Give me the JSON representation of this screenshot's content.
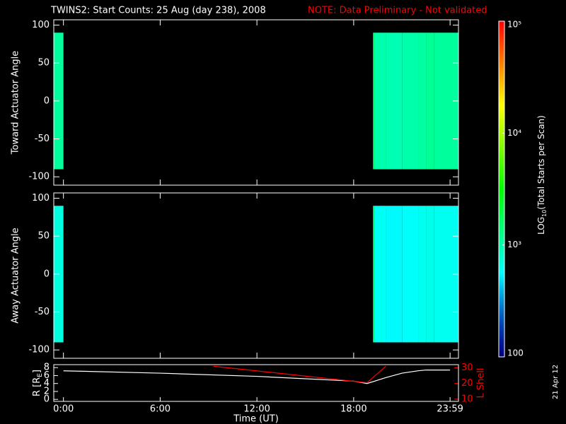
{
  "title": "TWINS2: Start Counts: 25 Aug (day 238), 2008",
  "note": "NOTE: Data Preliminary - Not validated",
  "side_date": "21 Apr 12",
  "chart_data": [
    {
      "type": "heatmap",
      "ylabel": "Toward Actuator Angle",
      "x_edges": [
        -0.6,
        0,
        19.2,
        19.3,
        20,
        21,
        22,
        22.5,
        23,
        24.5
      ],
      "y_edges": [
        -90,
        90
      ],
      "values": [
        1100,
        null,
        1500,
        1000,
        950,
        1000,
        1050,
        1150,
        1100
      ],
      "xlim": [
        -0.6,
        24.5
      ],
      "ylim": [
        -111,
        107
      ],
      "yticks": [
        100,
        50,
        0,
        -50,
        -100
      ],
      "zlim": [
        100,
        100000
      ],
      "zscale": "log",
      "zticks": [
        100,
        {
          "value": 1000,
          "label": "10³"
        },
        {
          "value": 10000,
          "label": "10⁴"
        },
        {
          "value": 100000,
          "label": "10⁵"
        }
      ],
      "zlabel": [
        "LOG",
        "10",
        "(Total Starts per Scan)"
      ]
    },
    {
      "type": "heatmap",
      "ylabel": "Away Actuator Angle",
      "x_edges": [
        -0.6,
        0,
        19.2,
        19.3,
        20,
        21,
        22,
        22.5,
        23,
        24.5
      ],
      "y_edges": [
        -90,
        90
      ],
      "values": [
        700,
        null,
        1200,
        600,
        550,
        580,
        620,
        650,
        620
      ],
      "xlim": [
        -0.6,
        24.5
      ],
      "ylim": [
        -111,
        107
      ],
      "yticks": [
        100,
        50,
        0,
        -50,
        -100
      ]
    },
    {
      "type": "line",
      "ylabel": [
        "R [R",
        "E",
        "]"
      ],
      "y2label": "L Shell",
      "xlabel": "Time (UT)",
      "xlim": [
        -0.6,
        24.5
      ],
      "ylim": [
        -0.5,
        8.75
      ],
      "y2lim": [
        8.6,
        32
      ],
      "xticks": [
        {
          "value": 0,
          "label": "0:00"
        },
        {
          "value": 6,
          "label": "6:00"
        },
        {
          "value": 12,
          "label": "12:00"
        },
        {
          "value": 18,
          "label": "18:00"
        },
        {
          "value": 23.98,
          "label": "23:59"
        }
      ],
      "yticks": [
        0,
        2,
        4,
        6,
        8
      ],
      "y2ticks": [
        10,
        20,
        30
      ],
      "series": [
        {
          "color": "#ffffff",
          "x": [
            0,
            6,
            12,
            18,
            18.83,
            20,
            21,
            22,
            22.5,
            23.98
          ],
          "values": [
            7.2,
            6.6,
            5.8,
            4.6,
            4.0,
            5.5,
            6.6,
            7.2,
            7.4,
            7.4
          ]
        },
        {
          "color": "#ff0000",
          "axis": "y2",
          "x": [
            9.3,
            18.83,
            20.0
          ],
          "values": [
            31,
            20.5,
            31
          ]
        }
      ]
    }
  ]
}
